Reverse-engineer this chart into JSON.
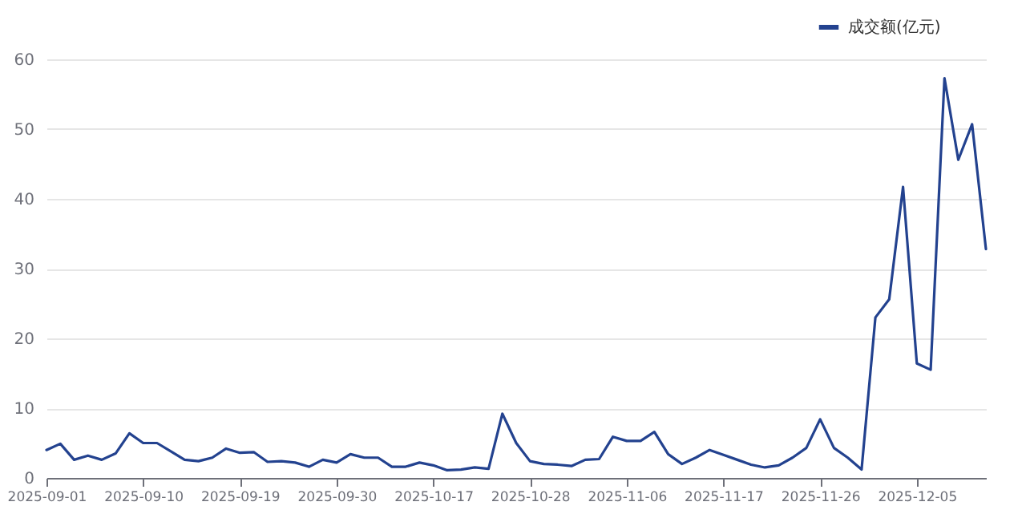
{
  "chart_data": {
    "type": "line",
    "categories": [
      "2025-09-01",
      null,
      null,
      null,
      null,
      null,
      null,
      "2025-09-10",
      null,
      null,
      null,
      null,
      null,
      null,
      "2025-09-19",
      null,
      null,
      null,
      null,
      null,
      null,
      "2025-09-30",
      null,
      null,
      null,
      null,
      null,
      null,
      "2025-10-17",
      null,
      null,
      null,
      null,
      null,
      null,
      "2025-10-28",
      null,
      null,
      null,
      null,
      null,
      null,
      "2025-11-06",
      null,
      null,
      null,
      null,
      null,
      null,
      "2025-11-17",
      null,
      null,
      null,
      null,
      null,
      null,
      "2025-11-26",
      null,
      null,
      null,
      null,
      null,
      null,
      "2025-12-05",
      null,
      null,
      null,
      null,
      null
    ],
    "series": [
      {
        "name": "成交额(亿元)",
        "color": "#23428f",
        "values": [
          4.0,
          4.9,
          2.6,
          3.2,
          2.6,
          3.5,
          6.4,
          5.0,
          5.0,
          3.8,
          2.6,
          2.4,
          2.9,
          4.2,
          3.6,
          3.7,
          2.3,
          2.4,
          2.2,
          1.6,
          2.6,
          2.2,
          3.4,
          2.9,
          2.9,
          1.6,
          1.6,
          2.2,
          1.8,
          1.1,
          1.2,
          1.5,
          1.3,
          9.2,
          5.0,
          2.4,
          2.0,
          1.9,
          1.7,
          2.6,
          2.7,
          5.9,
          5.3,
          5.3,
          6.6,
          3.4,
          2.0,
          2.9,
          4.0,
          3.3,
          2.6,
          1.9,
          1.5,
          1.8,
          2.9,
          4.3,
          8.4,
          4.3,
          2.9,
          1.2,
          23.0,
          25.6,
          41.7,
          16.4,
          15.5,
          57.3,
          45.6,
          50.7,
          32.8
        ]
      }
    ],
    "ylim": [
      0,
      60
    ],
    "yticks": [
      0,
      10,
      20,
      30,
      40,
      50,
      60
    ],
    "grid": "y",
    "legend": "top right",
    "marker": "none",
    "line_style": "solid"
  }
}
